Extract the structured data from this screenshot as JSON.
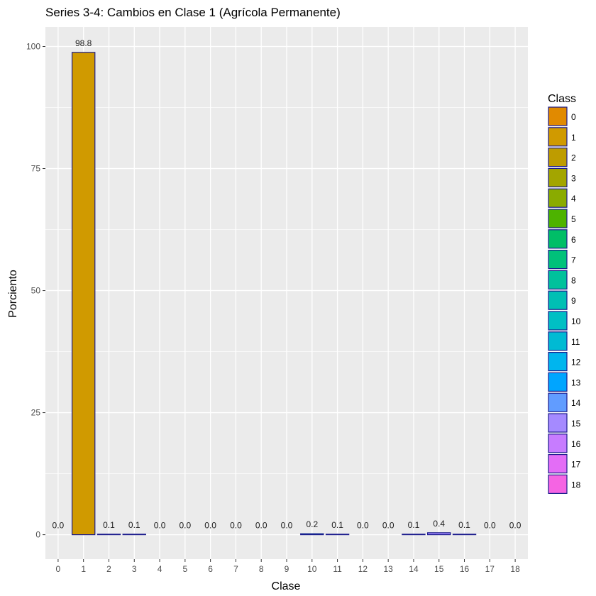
{
  "chart_data": {
    "type": "bar",
    "title": "Series 3-4: Cambios en Clase 1 (Agrícola Permanente)",
    "xlabel": "Clase",
    "ylabel": "Porciento",
    "categories": [
      "0",
      "1",
      "2",
      "3",
      "4",
      "5",
      "6",
      "7",
      "8",
      "9",
      "10",
      "11",
      "12",
      "13",
      "14",
      "15",
      "16",
      "17",
      "18"
    ],
    "values": [
      0.0,
      98.8,
      0.1,
      0.1,
      0.0,
      0.0,
      0.0,
      0.0,
      0.0,
      0.0,
      0.2,
      0.1,
      0.0,
      0.0,
      0.1,
      0.4,
      0.1,
      0.0,
      0.0
    ],
    "data_labels": [
      "0.0",
      "98.8",
      "0.1",
      "0.1",
      "0.0",
      "0.0",
      "0.0",
      "0.0",
      "0.0",
      "0.0",
      "0.2",
      "0.1",
      "0.0",
      "0.0",
      "0.1",
      "0.4",
      "0.1",
      "0.0",
      "0.0"
    ],
    "ylim": [
      -5,
      104
    ],
    "yticks": [
      0,
      25,
      50,
      75,
      100
    ],
    "grid": true,
    "legend": {
      "title": "Class",
      "placement": "right",
      "entries": [
        "0",
        "1",
        "2",
        "3",
        "4",
        "5",
        "6",
        "7",
        "8",
        "9",
        "10",
        "11",
        "12",
        "13",
        "14",
        "15",
        "16",
        "17",
        "18"
      ]
    },
    "colors": [
      "#E18A00",
      "#D09A00",
      "#BE9C00",
      "#A3A500",
      "#8AAB00",
      "#4DB300",
      "#00BE67",
      "#00C17A",
      "#00C19C",
      "#00BFB4",
      "#00BFC4",
      "#00BAD3",
      "#00B5EE",
      "#00A5FF",
      "#619CFF",
      "#A58AFF",
      "#C77CFF",
      "#E36DF6",
      "#F564E3"
    ],
    "bar_outline": "#1a1a8c",
    "panel_background": "#EBEBEB",
    "grid_color": "#FFFFFF"
  }
}
